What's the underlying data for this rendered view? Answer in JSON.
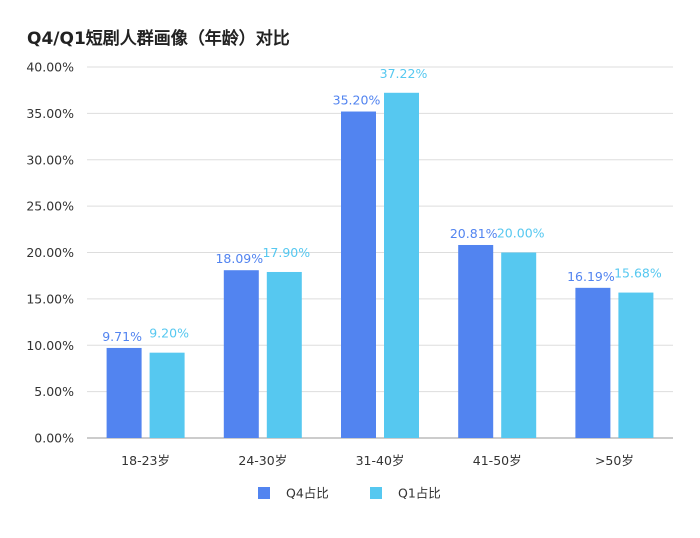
{
  "chart_data": {
    "type": "bar",
    "title": "Q4/Q1短剧人群画像（年龄）对比",
    "categories": [
      "18-23岁",
      "24-30岁",
      "31-40岁",
      "41-50岁",
      ">50岁"
    ],
    "series": [
      {
        "name": "Q4占比",
        "values": [
          9.71,
          18.09,
          35.2,
          20.81,
          16.19
        ],
        "labels": [
          "9.71%",
          "18.09%",
          "35.20%",
          "20.81%",
          "16.19%"
        ],
        "color": "#5284F0"
      },
      {
        "name": "Q1占比",
        "values": [
          9.2,
          17.9,
          37.22,
          20.0,
          15.68
        ],
        "labels": [
          "9.20%",
          "17.90%",
          "37.22%",
          "20.00%",
          "15.68%"
        ],
        "color": "#56C8F0"
      }
    ],
    "ylim": [
      0,
      40
    ],
    "yticks": [
      "0.00%",
      "5.00%",
      "10.00%",
      "15.00%",
      "20.00%",
      "25.00%",
      "30.00%",
      "35.00%",
      "40.00%"
    ],
    "grid": true,
    "legend_position": "bottom"
  }
}
